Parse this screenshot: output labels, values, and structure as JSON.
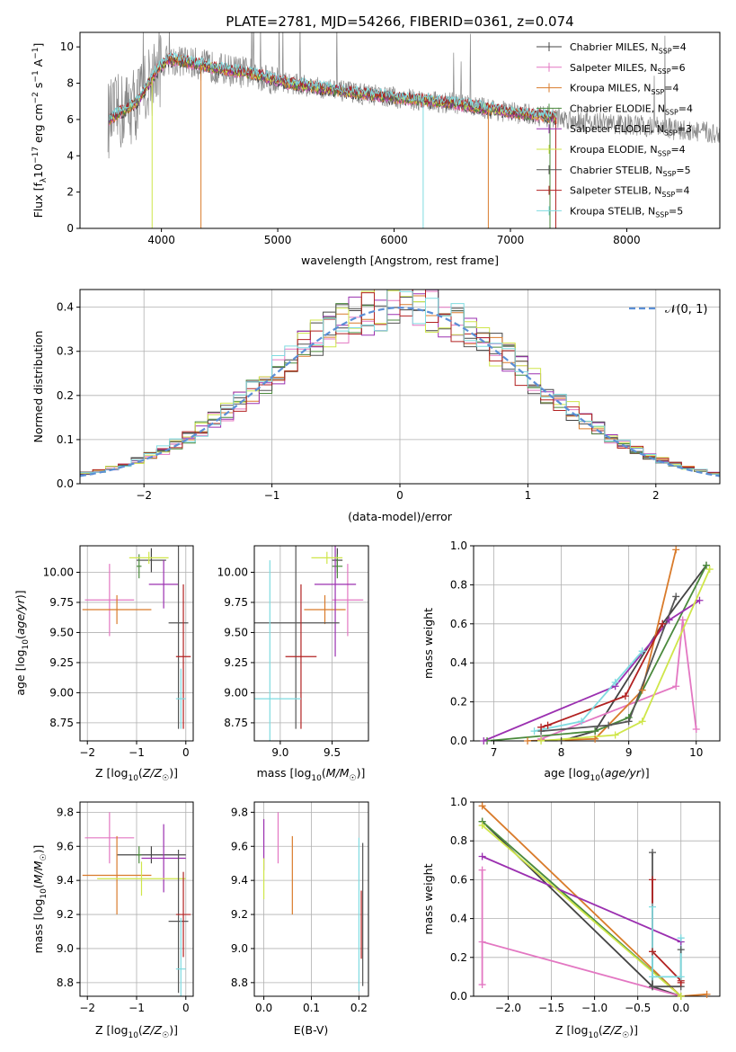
{
  "figure_title": "PLATE=2781, MJD=54266, FIBERID=0361, z=0.074",
  "colors": {
    "Chabrier MILES": "#444444",
    "Salpeter MILES": "#e377c2",
    "Kroupa MILES": "#d97b2b",
    "Chabrier ELODIE": "#4a8a3c",
    "Salpeter ELODIE": "#9b30b0",
    "Kroupa ELODIE": "#cfe64a",
    "Chabrier STELIB": "#555555",
    "Salpeter STELIB": "#b22222",
    "Kroupa STELIB": "#7fdbe0",
    "normal_curve": "#5b8fd6",
    "data_spectrum": "#888888"
  },
  "chart_data": [
    {
      "id": "spectrum",
      "type": "line",
      "xlabel": "wavelength [Angstrom, rest frame]",
      "ylabel": "Flux [f_λ 10^-17 erg cm^-2 s^-1 A^-1]",
      "xlim": [
        3300,
        8800
      ],
      "ylim": [
        0,
        10.8
      ],
      "xticks": [
        4000,
        5000,
        6000,
        7000,
        8000
      ],
      "yticks": [
        0,
        2,
        4,
        6,
        8,
        10
      ],
      "grid": false,
      "legend_position": "top-right",
      "legend": [
        {
          "main": "Chabrier MILES, N",
          "sub": "SSP",
          "tail": "=4"
        },
        {
          "main": "Salpeter MILES, N",
          "sub": "SSP",
          "tail": "=6"
        },
        {
          "main": "Kroupa MILES, N",
          "sub": "SSP",
          "tail": "=4"
        },
        {
          "main": "Chabrier ELODIE, N",
          "sub": "SSP",
          "tail": "=4"
        },
        {
          "main": "Salpeter ELODIE, N",
          "sub": "SSP",
          "tail": "=3"
        },
        {
          "main": "Kroupa ELODIE, N",
          "sub": "SSP",
          "tail": "=4"
        },
        {
          "main": "Chabrier STELIB, N",
          "sub": "SSP",
          "tail": "=5"
        },
        {
          "main": "Salpeter STELIB, N",
          "sub": "SSP",
          "tail": "=4"
        },
        {
          "main": "Kroupa STELIB, N",
          "sub": "SSP",
          "tail": "=5"
        }
      ],
      "continuum": [
        [
          3520,
          5.9
        ],
        [
          3650,
          6.4
        ],
        [
          3800,
          7.0
        ],
        [
          3950,
          8.6
        ],
        [
          4050,
          9.3
        ],
        [
          4200,
          9.2
        ],
        [
          4500,
          8.8
        ],
        [
          4800,
          8.5
        ],
        [
          5100,
          8.0
        ],
        [
          5500,
          7.6
        ],
        [
          6000,
          7.2
        ],
        [
          6500,
          6.9
        ],
        [
          7000,
          6.4
        ],
        [
          7400,
          6.1
        ],
        [
          7800,
          5.8
        ],
        [
          8200,
          5.6
        ],
        [
          8500,
          5.4
        ],
        [
          8800,
          5.2
        ]
      ],
      "model_wavelength_range": [
        3550,
        7400
      ],
      "model_dropouts": [
        [
          3920,
          "#cfe64a"
        ],
        [
          4340,
          "#d97b2b"
        ],
        [
          6250,
          "#7fdbe0"
        ],
        [
          6810,
          "#d97b2b"
        ],
        [
          7340,
          "#4a8a3c"
        ],
        [
          7390,
          "#b22222"
        ]
      ]
    },
    {
      "id": "residuals",
      "type": "line",
      "xlabel": "(data-model)/error",
      "ylabel": "Normed distribution",
      "xlim": [
        -2.5,
        2.5
      ],
      "ylim": [
        0,
        0.44
      ],
      "xticks": [
        -2,
        -1,
        0,
        1,
        2
      ],
      "yticks": [
        0.0,
        0.1,
        0.2,
        0.3,
        0.4
      ],
      "grid": true,
      "legend_position": "top-right",
      "legend": [
        {
          "label": "N(0, 1)"
        }
      ],
      "bin_width": 0.1
    },
    {
      "id": "age_vs_Z",
      "type": "scatter",
      "xlabel": "Z [log10(Z/Z☉)]",
      "ylabel": "age [log10(age/yr)]",
      "xlim": [
        -2.15,
        0.15
      ],
      "ylim": [
        8.6,
        10.22
      ],
      "xticks": [
        -2,
        -1,
        0
      ],
      "yticks": [
        8.75,
        9.0,
        9.25,
        9.5,
        9.75,
        10.0
      ],
      "grid": true,
      "points": [
        {
          "model": "Chabrier MILES",
          "x": -0.7,
          "y": 10.1,
          "xerr": 0.3,
          "yerr": 0.1
        },
        {
          "model": "Salpeter MILES",
          "x": -1.55,
          "y": 9.77,
          "xerr": 0.5,
          "yerr": 0.3
        },
        {
          "model": "Kroupa MILES",
          "x": -1.4,
          "y": 9.69,
          "xerr": 0.7,
          "yerr": 0.12
        },
        {
          "model": "Chabrier ELODIE",
          "x": -0.95,
          "y": 10.05,
          "xerr": 0.05,
          "yerr": 0.1
        },
        {
          "model": "Salpeter ELODIE",
          "x": -0.45,
          "y": 9.9,
          "xerr": 0.3,
          "yerr": 0.2
        },
        {
          "model": "Kroupa ELODIE",
          "x": -0.75,
          "y": 10.12,
          "xerr": 0.4,
          "yerr": 0.05
        },
        {
          "model": "Chabrier STELIB",
          "x": -0.15,
          "y": 9.58,
          "xerr": 0.2,
          "yerr": 0.88
        },
        {
          "model": "Salpeter STELIB",
          "x": -0.05,
          "y": 9.3,
          "xerr": 0.15,
          "yerr": 0.6
        },
        {
          "model": "Kroupa STELIB",
          "x": -0.1,
          "y": 8.95,
          "xerr": 0.1,
          "yerr": 0.25
        }
      ]
    },
    {
      "id": "age_vs_mass",
      "type": "scatter",
      "xlabel": "mass [log10(M/M☉)]",
      "ylabel": "",
      "xlim": [
        8.75,
        9.85
      ],
      "ylim": [
        8.6,
        10.22
      ],
      "xticks": [
        9.0,
        9.5
      ],
      "yticks": [
        8.75,
        9.0,
        9.25,
        9.5,
        9.75,
        10.0
      ],
      "grid": true,
      "points": [
        {
          "model": "Chabrier MILES",
          "x": 9.55,
          "y": 10.1,
          "xerr": 0.05,
          "yerr": 0.1
        },
        {
          "model": "Salpeter MILES",
          "x": 9.65,
          "y": 9.77,
          "xerr": 0.15,
          "yerr": 0.3
        },
        {
          "model": "Kroupa MILES",
          "x": 9.43,
          "y": 9.69,
          "xerr": 0.2,
          "yerr": 0.12
        },
        {
          "model": "Chabrier ELODIE",
          "x": 9.55,
          "y": 10.05,
          "xerr": 0.05,
          "yerr": 0.1
        },
        {
          "model": "Salpeter ELODIE",
          "x": 9.53,
          "y": 9.9,
          "xerr": 0.2,
          "yerr": 0.6
        },
        {
          "model": "Kroupa ELODIE",
          "x": 9.45,
          "y": 10.12,
          "xerr": 0.15,
          "yerr": 0.05
        },
        {
          "model": "Chabrier STELIB",
          "x": 9.15,
          "y": 9.58,
          "xerr": 0.42,
          "yerr": 0.88
        },
        {
          "model": "Salpeter STELIB",
          "x": 9.2,
          "y": 9.3,
          "xerr": 0.15,
          "yerr": 0.6
        },
        {
          "model": "Kroupa STELIB",
          "x": 8.9,
          "y": 8.95,
          "xerr": 0.3,
          "yerr": 1.15
        }
      ]
    },
    {
      "id": "weight_vs_age",
      "type": "line",
      "xlabel": "age [log10(age/yr)]",
      "ylabel": "mass weight",
      "xlim": [
        6.7,
        10.35
      ],
      "ylim": [
        0,
        1.0
      ],
      "xticks": [
        7,
        8,
        9,
        10
      ],
      "yticks": [
        0.0,
        0.2,
        0.4,
        0.6,
        0.8,
        1.0
      ],
      "grid": true,
      "series": [
        {
          "model": "Chabrier MILES",
          "x": [
            8.0,
            8.5,
            9.5,
            10.15
          ],
          "y": [
            0.0,
            0.05,
            0.6,
            0.9
          ]
        },
        {
          "model": "Salpeter MILES",
          "x": [
            7.7,
            9.7,
            9.8,
            10.0
          ],
          "y": [
            0.01,
            0.28,
            0.62,
            0.06
          ]
        },
        {
          "model": "Kroupa MILES",
          "x": [
            7.5,
            8.5,
            9.2,
            9.7
          ],
          "y": [
            0.0,
            0.01,
            0.26,
            0.98
          ]
        },
        {
          "model": "Chabrier ELODIE",
          "x": [
            6.9,
            8.5,
            9.0,
            10.15
          ],
          "y": [
            0.0,
            0.05,
            0.12,
            0.9
          ]
        },
        {
          "model": "Salpeter ELODIE",
          "x": [
            6.85,
            8.8,
            9.6,
            10.05
          ],
          "y": [
            0.0,
            0.28,
            0.62,
            0.72
          ]
        },
        {
          "model": "Kroupa ELODIE",
          "x": [
            7.7,
            8.8,
            9.2,
            10.2
          ],
          "y": [
            0.0,
            0.03,
            0.1,
            0.88
          ]
        },
        {
          "model": "Chabrier STELIB",
          "x": [
            7.7,
            8.7,
            9.0,
            9.7
          ],
          "y": [
            0.05,
            0.08,
            0.1,
            0.74
          ]
        },
        {
          "model": "Salpeter STELIB",
          "x": [
            7.7,
            7.8,
            8.95,
            9.5
          ],
          "y": [
            0.07,
            0.08,
            0.23,
            0.6
          ]
        },
        {
          "model": "Kroupa STELIB",
          "x": [
            7.6,
            8.3,
            8.8,
            9.2
          ],
          "y": [
            0.05,
            0.1,
            0.3,
            0.46
          ]
        }
      ]
    },
    {
      "id": "mass_vs_Z",
      "type": "scatter",
      "xlabel": "Z [log10(Z/Z☉)]",
      "ylabel": "mass [log10(M/M☉)]",
      "xlim": [
        -2.15,
        0.15
      ],
      "ylim": [
        8.72,
        9.86
      ],
      "xticks": [
        -2,
        -1,
        0
      ],
      "yticks": [
        8.8,
        9.0,
        9.2,
        9.4,
        9.6,
        9.8
      ],
      "grid": true,
      "points": [
        {
          "model": "Chabrier MILES",
          "x": -0.7,
          "y": 9.55,
          "xerr": 0.7,
          "yerr": 0.05
        },
        {
          "model": "Salpeter MILES",
          "x": -1.55,
          "y": 9.65,
          "xerr": 0.5,
          "yerr": 0.15
        },
        {
          "model": "Kroupa MILES",
          "x": -1.4,
          "y": 9.43,
          "xerr": 0.7,
          "yerr": 0.23
        },
        {
          "model": "Chabrier ELODIE",
          "x": -0.95,
          "y": 9.55,
          "xerr": 0.05,
          "yerr": 0.05
        },
        {
          "model": "Salpeter ELODIE",
          "x": -0.45,
          "y": 9.53,
          "xerr": 0.45,
          "yerr": 0.2
        },
        {
          "model": "Kroupa ELODIE",
          "x": -0.9,
          "y": 9.41,
          "xerr": 0.9,
          "yerr": 0.1
        },
        {
          "model": "Chabrier STELIB",
          "x": -0.15,
          "y": 9.16,
          "xerr": 0.2,
          "yerr": 0.42
        },
        {
          "model": "Salpeter STELIB",
          "x": -0.05,
          "y": 9.2,
          "xerr": 0.15,
          "yerr": 0.25
        },
        {
          "model": "Kroupa STELIB",
          "x": -0.1,
          "y": 8.88,
          "xerr": 0.1,
          "yerr": 0.3
        }
      ]
    },
    {
      "id": "mass_vs_ebv",
      "type": "scatter",
      "xlabel": "E(B-V)",
      "ylabel": "",
      "xlim": [
        -0.02,
        0.22
      ],
      "ylim": [
        8.72,
        9.86
      ],
      "xticks": [
        0.0,
        0.1,
        0.2
      ],
      "yticks": [
        8.8,
        9.0,
        9.2,
        9.4,
        9.6,
        9.8
      ],
      "grid": true,
      "points": [
        {
          "model": "Salpeter ELODIE",
          "x": 0.0,
          "y": 9.61,
          "xerr": 0.0,
          "yerr": 0.15
        },
        {
          "model": "Kroupa ELODIE",
          "x": 0.0,
          "y": 9.41,
          "xerr": 0.0,
          "yerr": 0.12
        },
        {
          "model": "Salpeter MILES",
          "x": 0.03,
          "y": 9.65,
          "xerr": 0.0,
          "yerr": 0.15
        },
        {
          "model": "Kroupa MILES",
          "x": 0.06,
          "y": 9.43,
          "xerr": 0.0,
          "yerr": 0.23
        },
        {
          "model": "Kroupa STELIB",
          "x": 0.2,
          "y": 9.2,
          "xerr": 0.0,
          "yerr": 0.45
        },
        {
          "model": "Chabrier STELIB",
          "x": 0.208,
          "y": 9.2,
          "xerr": 0.0,
          "yerr": 0.42
        },
        {
          "model": "Salpeter STELIB",
          "x": 0.205,
          "y": 9.14,
          "xerr": 0.0,
          "yerr": 0.2
        }
      ]
    },
    {
      "id": "weight_vs_Z",
      "type": "line",
      "xlabel": "Z [log10(Z/Z☉)]",
      "ylabel": "mass weight",
      "xlim": [
        -2.4,
        0.45
      ],
      "ylim": [
        0,
        1.0
      ],
      "xticks": [
        -2.0,
        -1.5,
        -1.0,
        -0.5,
        0.0
      ],
      "yticks": [
        0.0,
        0.2,
        0.4,
        0.6,
        0.8,
        1.0
      ],
      "grid": true,
      "series": [
        {
          "model": "Chabrier MILES",
          "x": [
            -2.3,
            -0.33,
            0.0
          ],
          "y": [
            0.9,
            0.05,
            0.0
          ]
        },
        {
          "model": "Salpeter MILES",
          "x": [
            -2.3,
            -2.3,
            -2.3,
            0.0
          ],
          "y": [
            0.06,
            0.65,
            0.28,
            0.0
          ]
        },
        {
          "model": "Kroupa MILES",
          "x": [
            -2.3,
            0.0,
            0.3
          ],
          "y": [
            0.98,
            0.0,
            0.01
          ]
        },
        {
          "model": "Chabrier ELODIE",
          "x": [
            -2.3,
            0.0
          ],
          "y": [
            0.9,
            0.0
          ]
        },
        {
          "model": "Salpeter ELODIE",
          "x": [
            -2.3,
            0.0
          ],
          "y": [
            0.72,
            0.28
          ]
        },
        {
          "model": "Kroupa ELODIE",
          "x": [
            -2.3,
            0.0
          ],
          "y": [
            0.88,
            0.0
          ]
        },
        {
          "model": "Chabrier STELIB",
          "x": [
            -0.33,
            -0.33,
            0.0,
            0.0
          ],
          "y": [
            0.74,
            0.05,
            0.05,
            0.24
          ]
        },
        {
          "model": "Salpeter STELIB",
          "x": [
            -0.33,
            -0.33,
            0.0,
            0.0
          ],
          "y": [
            0.6,
            0.23,
            0.08,
            0.07
          ]
        },
        {
          "model": "Kroupa STELIB",
          "x": [
            -0.33,
            -0.33,
            0.0,
            0.0
          ],
          "y": [
            0.46,
            0.1,
            0.1,
            0.3
          ]
        }
      ]
    }
  ]
}
